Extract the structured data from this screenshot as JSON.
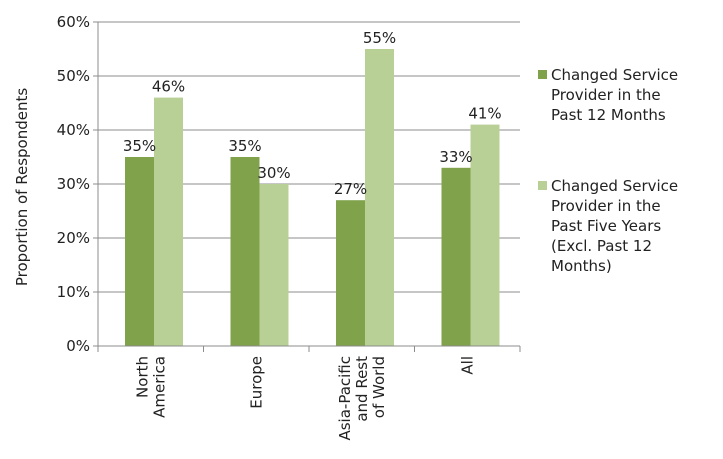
{
  "chart_data": {
    "type": "bar",
    "title": "",
    "xlabel": "",
    "ylabel": "Proportion of Respondents",
    "ylim": [
      0,
      60
    ],
    "yticks": [
      0,
      10,
      20,
      30,
      40,
      50,
      60
    ],
    "ytick_labels": [
      "0%",
      "10%",
      "20%",
      "30%",
      "40%",
      "50%",
      "60%"
    ],
    "grid": true,
    "legend_position": "right",
    "categories": [
      [
        "North",
        "America"
      ],
      [
        "Europe"
      ],
      [
        "Asia-Pacific",
        "and Rest",
        "of World"
      ],
      [
        "All"
      ]
    ],
    "series": [
      {
        "name": [
          "Changed Service",
          "Provider in the",
          "Past 12 Months"
        ],
        "color": "#7fa24a",
        "values": [
          35,
          35,
          27,
          33
        ],
        "labels": [
          "35%",
          "35%",
          "27%",
          "33%"
        ]
      },
      {
        "name": [
          "Changed Service",
          "Provider in the",
          "Past Five Years",
          "(Excl. Past 12",
          "Months)"
        ],
        "color": "#b8d095",
        "values": [
          46,
          30,
          55,
          41
        ],
        "labels": [
          "46%",
          "30%",
          "55%",
          "41%"
        ]
      }
    ]
  }
}
